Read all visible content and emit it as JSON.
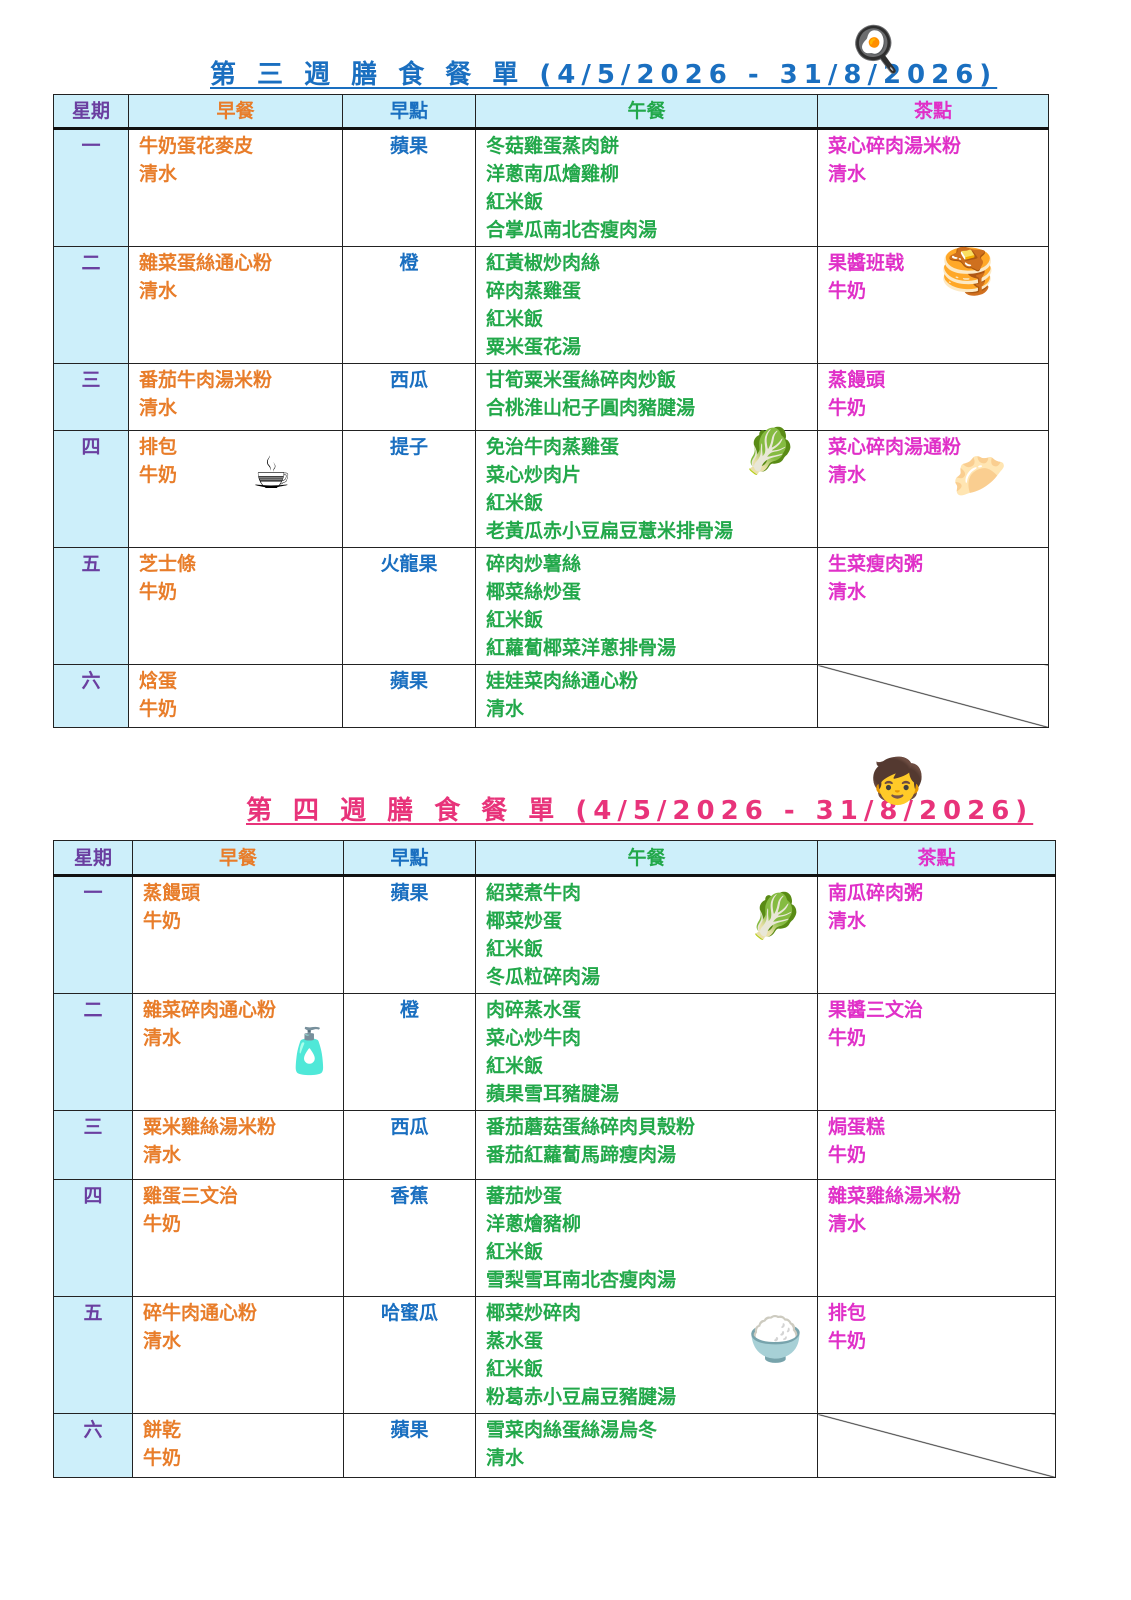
{
  "week3": {
    "title": "第 三 週 膳 食 餐 單 (4/5/2026 - 31/8/2026)",
    "headers": [
      "星期",
      "早餐",
      "早點",
      "午餐",
      "茶點"
    ],
    "rows": [
      {
        "day": "一",
        "breakfast": [
          "牛奶蛋花麥皮",
          "清水"
        ],
        "snack": "蘋果",
        "lunch": [
          "冬菇雞蛋蒸肉餅",
          "洋蔥南瓜燴雞柳",
          "紅米飯",
          "合掌瓜南北杏瘦肉湯"
        ],
        "tea": [
          "菜心碎肉湯米粉",
          "清水"
        ]
      },
      {
        "day": "二",
        "breakfast": [
          "雜菜蛋絲通心粉",
          "清水"
        ],
        "snack": "橙",
        "lunch": [
          "紅黃椒炒肉絲",
          "碎肉蒸雞蛋",
          "紅米飯",
          "粟米蛋花湯"
        ],
        "tea": [
          "果醬班戟",
          "牛奶"
        ]
      },
      {
        "day": "三",
        "breakfast": [
          "番茄牛肉湯米粉",
          "清水"
        ],
        "snack": "西瓜",
        "lunch": [
          "甘筍粟米蛋絲碎肉炒飯",
          "合桃淮山杞子圓肉豬腱湯"
        ],
        "tea": [
          "蒸饅頭",
          "牛奶"
        ]
      },
      {
        "day": "四",
        "breakfast": [
          "排包",
          "牛奶"
        ],
        "snack": "提子",
        "lunch": [
          "免治牛肉蒸雞蛋",
          "菜心炒肉片",
          "紅米飯",
          "老黃瓜赤小豆扁豆薏米排骨湯"
        ],
        "tea": [
          "菜心碎肉湯通粉",
          "清水"
        ]
      },
      {
        "day": "五",
        "breakfast": [
          "芝士條",
          "牛奶"
        ],
        "snack": "火龍果",
        "lunch": [
          "碎肉炒薯絲",
          "椰菜絲炒蛋",
          "紅米飯",
          "紅蘿蔔椰菜洋蔥排骨湯"
        ],
        "tea": [
          "生菜瘦肉粥",
          "清水"
        ]
      },
      {
        "day": "六",
        "breakfast": [
          "焓蛋",
          "牛奶"
        ],
        "snack": "蘋果",
        "lunch": [
          "娃娃菜肉絲通心粉",
          "清水"
        ],
        "tea": []
      }
    ]
  },
  "week4": {
    "title": "第 四 週 膳 食 餐 單 (4/5/2026 - 31/8/2026)",
    "headers": [
      "星期",
      "早餐",
      "早點",
      "午餐",
      "茶點"
    ],
    "rows": [
      {
        "day": "一",
        "breakfast": [
          "蒸饅頭",
          "牛奶"
        ],
        "snack": "蘋果",
        "lunch": [
          "紹菜煮牛肉",
          "椰菜炒蛋",
          "紅米飯",
          "冬瓜粒碎肉湯"
        ],
        "tea": [
          "南瓜碎肉粥",
          "清水"
        ]
      },
      {
        "day": "二",
        "breakfast": [
          "雜菜碎肉通心粉",
          "清水"
        ],
        "snack": "橙",
        "lunch": [
          "肉碎蒸水蛋",
          "菜心炒牛肉",
          "紅米飯",
          "蘋果雪耳豬腱湯"
        ],
        "tea": [
          "果醬三文治",
          "牛奶"
        ]
      },
      {
        "day": "三",
        "breakfast": [
          "粟米雞絲湯米粉",
          "清水"
        ],
        "snack": "西瓜",
        "lunch": [
          "番茄蘑菇蛋絲碎肉貝殼粉",
          "番茄紅蘿蔔馬蹄瘦肉湯"
        ],
        "tea": [
          "焗蛋糕",
          "牛奶"
        ]
      },
      {
        "day": "四",
        "breakfast": [
          "雞蛋三文治",
          "牛奶"
        ],
        "snack": "香蕉",
        "lunch": [
          "蕃茄炒蛋",
          "洋蔥燴豬柳",
          "紅米飯",
          "雪梨雪耳南北杏瘦肉湯"
        ],
        "tea": [
          "雜菜雞絲湯米粉",
          "清水"
        ]
      },
      {
        "day": "五",
        "breakfast": [
          "碎牛肉通心粉",
          "清水"
        ],
        "snack": "哈蜜瓜",
        "lunch": [
          "椰菜炒碎肉",
          "蒸水蛋",
          "紅米飯",
          "粉葛赤小豆扁豆豬腱湯"
        ],
        "tea": [
          "排包",
          "牛奶"
        ]
      },
      {
        "day": "六",
        "breakfast": [
          "餅乾",
          "牛奶"
        ],
        "snack": "蘋果",
        "lunch": [
          "雪菜肉絲蛋絲湯烏冬",
          "清水"
        ],
        "tea": []
      }
    ]
  },
  "colors": {
    "day": "#6a3fa0",
    "breakfast": "#e87d2a",
    "snack": "#1a6fc0",
    "lunch": "#22a84a",
    "tea": "#e030c8",
    "header_bg": "#cdeffa"
  },
  "decorations": [
    "cooking-stove-icon",
    "pancake-icon",
    "mug-icon",
    "cabbage-icon",
    "dumpling-plate-icon",
    "child-eating-icon",
    "cabbage-icon",
    "water-bottle-icon",
    "rice-bowl-icon"
  ]
}
